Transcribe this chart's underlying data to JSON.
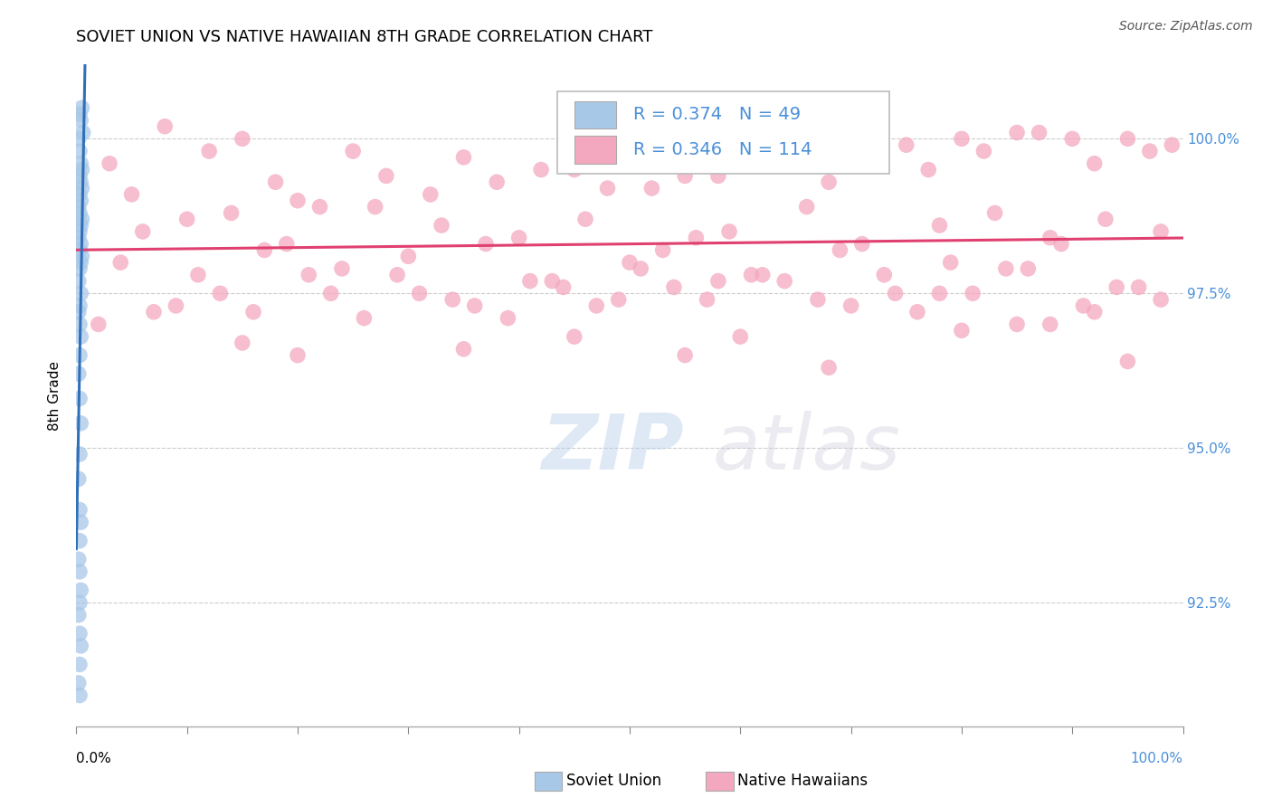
{
  "title": "SOVIET UNION VS NATIVE HAWAIIAN 8TH GRADE CORRELATION CHART",
  "source_text": "Source: ZipAtlas.com",
  "ylabel": "8th Grade",
  "y_tick_labels": [
    "92.5%",
    "95.0%",
    "97.5%",
    "100.0%"
  ],
  "y_tick_values": [
    92.5,
    95.0,
    97.5,
    100.0
  ],
  "x_min": 0.0,
  "x_max": 100.0,
  "y_min": 90.5,
  "y_max": 101.2,
  "legend_blue_R": "R = 0.374",
  "legend_blue_N": "N = 49",
  "legend_pink_R": "R = 0.346",
  "legend_pink_N": "N = 114",
  "legend_blue_label": "Soviet Union",
  "legend_pink_label": "Native Hawaiians",
  "blue_color": "#a8c8e8",
  "pink_color": "#f4a8bf",
  "trend_blue_color": "#3070b8",
  "trend_pink_color": "#e04070",
  "blue_x": [
    0.3,
    0.5,
    0.4,
    0.6,
    0.2,
    0.3,
    0.4,
    0.5,
    0.3,
    0.4,
    0.5,
    0.3,
    0.4,
    0.2,
    0.3,
    0.5,
    0.4,
    0.3,
    0.2,
    0.4,
    0.3,
    0.5,
    0.4,
    0.3,
    0.2,
    0.4,
    0.3,
    0.2,
    0.3,
    0.4,
    0.3,
    0.2,
    0.3,
    0.4,
    0.3,
    0.2,
    0.3,
    0.4,
    0.3,
    0.2,
    0.3,
    0.4,
    0.3,
    0.2,
    0.3,
    0.4,
    0.3,
    0.2,
    0.3
  ],
  "blue_y": [
    100.4,
    100.5,
    100.3,
    100.1,
    100.0,
    99.8,
    99.6,
    99.5,
    99.4,
    99.3,
    99.2,
    99.1,
    99.0,
    98.9,
    98.8,
    98.7,
    98.6,
    98.5,
    98.4,
    98.3,
    98.2,
    98.1,
    98.0,
    97.9,
    97.7,
    97.5,
    97.3,
    97.2,
    97.0,
    96.8,
    96.5,
    96.2,
    95.8,
    95.4,
    94.9,
    94.5,
    94.0,
    93.8,
    93.5,
    93.2,
    93.0,
    92.7,
    92.5,
    92.3,
    92.0,
    91.8,
    91.5,
    91.2,
    91.0
  ],
  "pink_x": [
    3.0,
    8.0,
    12.0,
    18.0,
    5.0,
    22.0,
    28.0,
    15.0,
    35.0,
    42.0,
    10.0,
    48.0,
    25.0,
    55.0,
    32.0,
    60.0,
    20.0,
    65.0,
    38.0,
    70.0,
    45.0,
    75.0,
    52.0,
    80.0,
    58.0,
    85.0,
    63.0,
    90.0,
    68.0,
    95.0,
    72.0,
    99.0,
    77.0,
    82.0,
    87.0,
    92.0,
    97.0,
    6.0,
    14.0,
    19.0,
    27.0,
    33.0,
    40.0,
    46.0,
    53.0,
    59.0,
    66.0,
    71.0,
    78.0,
    83.0,
    88.0,
    93.0,
    98.0,
    4.0,
    11.0,
    17.0,
    24.0,
    30.0,
    37.0,
    43.0,
    50.0,
    56.0,
    62.0,
    69.0,
    74.0,
    79.0,
    84.0,
    89.0,
    94.0,
    16.0,
    23.0,
    29.0,
    36.0,
    44.0,
    51.0,
    57.0,
    64.0,
    73.0,
    81.0,
    86.0,
    91.0,
    96.0,
    7.0,
    13.0,
    21.0,
    26.0,
    34.0,
    41.0,
    47.0,
    54.0,
    61.0,
    67.0,
    76.0,
    2.0,
    9.0,
    31.0,
    39.0,
    49.0,
    58.0,
    70.0,
    78.0,
    85.0,
    92.0,
    98.0,
    20.0,
    45.0,
    68.0,
    88.0,
    15.0,
    55.0,
    80.0,
    95.0,
    35.0,
    60.0
  ],
  "pink_y": [
    99.6,
    100.2,
    99.8,
    99.3,
    99.1,
    98.9,
    99.4,
    100.0,
    99.7,
    99.5,
    98.7,
    99.2,
    99.8,
    99.4,
    99.1,
    99.6,
    99.0,
    99.8,
    99.3,
    99.7,
    99.5,
    99.9,
    99.2,
    100.0,
    99.4,
    100.1,
    99.6,
    100.0,
    99.3,
    100.0,
    99.7,
    99.9,
    99.5,
    99.8,
    100.1,
    99.6,
    99.8,
    98.5,
    98.8,
    98.3,
    98.9,
    98.6,
    98.4,
    98.7,
    98.2,
    98.5,
    98.9,
    98.3,
    98.6,
    98.8,
    98.4,
    98.7,
    98.5,
    98.0,
    97.8,
    98.2,
    97.9,
    98.1,
    98.3,
    97.7,
    98.0,
    98.4,
    97.8,
    98.2,
    97.5,
    98.0,
    97.9,
    98.3,
    97.6,
    97.2,
    97.5,
    97.8,
    97.3,
    97.6,
    97.9,
    97.4,
    97.7,
    97.8,
    97.5,
    97.9,
    97.3,
    97.6,
    97.2,
    97.5,
    97.8,
    97.1,
    97.4,
    97.7,
    97.3,
    97.6,
    97.8,
    97.4,
    97.2,
    97.0,
    97.3,
    97.5,
    97.1,
    97.4,
    97.7,
    97.3,
    97.5,
    97.0,
    97.2,
    97.4,
    96.5,
    96.8,
    96.3,
    97.0,
    96.7,
    96.5,
    96.9,
    96.4,
    96.6,
    96.8
  ],
  "watermark_text": "ZIPatlas",
  "axis_label_color": "#4a90d9",
  "grid_color": "#cccccc",
  "tick_label_fontsize": 11,
  "title_fontsize": 13,
  "legend_fontsize": 14
}
